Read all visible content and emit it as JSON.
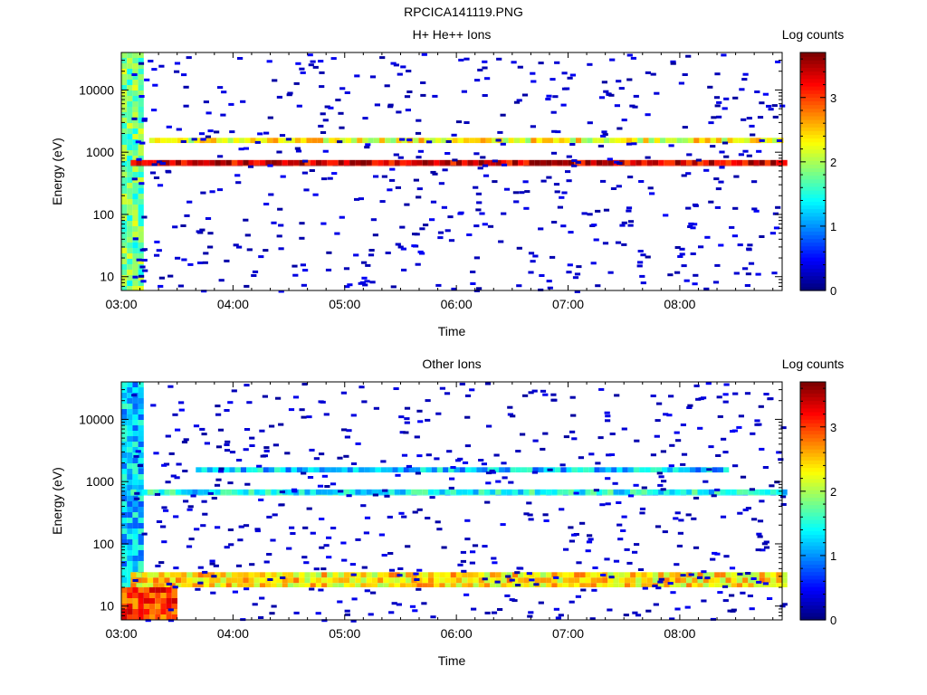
{
  "page_title": "RPCICA141119.PNG",
  "chart_data": [
    {
      "type": "heatmap",
      "title": "H+ He++ Ions",
      "xlabel": "Time",
      "ylabel": "Energy (eV)",
      "x_ticks": [
        "03:00",
        "04:00",
        "05:00",
        "06:00",
        "07:00",
        "08:00"
      ],
      "x_range": [
        "03:00",
        "08:55"
      ],
      "y_scale": "log",
      "y_ticks": [
        10,
        100,
        1000,
        10000
      ],
      "y_range": [
        6,
        40000
      ],
      "colorbar": {
        "label": "Log counts",
        "ticks": [
          0,
          1,
          2,
          3
        ],
        "range": [
          0,
          3.7
        ]
      },
      "features": [
        {
          "time": [
            "03:00",
            "03:10"
          ],
          "energy_ev": [
            6,
            40000
          ],
          "log_counts": 1.8
        },
        {
          "time": [
            "03:05",
            "08:55"
          ],
          "energy_ev": [
            600,
            750
          ],
          "log_counts": 3.4
        },
        {
          "time": [
            "03:15",
            "08:55"
          ],
          "energy_ev": [
            1400,
            1700
          ],
          "log_counts": 2.3
        },
        {
          "time": [
            "03:05",
            "08:55"
          ],
          "energy_ev": [
            6,
            40000
          ],
          "log_counts": 0.1,
          "type": "sparse"
        }
      ]
    },
    {
      "type": "heatmap",
      "title": "Other Ions",
      "xlabel": "Time",
      "ylabel": "Energy (eV)",
      "x_ticks": [
        "03:00",
        "04:00",
        "05:00",
        "06:00",
        "07:00",
        "08:00"
      ],
      "x_range": [
        "03:00",
        "08:55"
      ],
      "y_scale": "log",
      "y_ticks": [
        10,
        100,
        1000,
        10000
      ],
      "y_range": [
        6,
        40000
      ],
      "colorbar": {
        "label": "Log counts",
        "ticks": [
          0,
          1,
          2,
          3
        ],
        "range": [
          0,
          3.7
        ]
      },
      "features": [
        {
          "time": [
            "03:00",
            "03:10"
          ],
          "energy_ev": [
            6,
            40000
          ],
          "log_counts": 1.2
        },
        {
          "time": [
            "03:00",
            "03:30"
          ],
          "energy_ev": [
            6,
            20
          ],
          "log_counts": 3.0
        },
        {
          "time": [
            "03:05",
            "08:55"
          ],
          "energy_ev": [
            600,
            750
          ],
          "log_counts": 1.4
        },
        {
          "time": [
            "03:40",
            "08:25"
          ],
          "energy_ev": [
            1400,
            1700
          ],
          "log_counts": 1.2
        },
        {
          "time": [
            "03:05",
            "08:55"
          ],
          "energy_ev": [
            20,
            35
          ],
          "log_counts": 2.4
        },
        {
          "time": [
            "03:05",
            "08:55"
          ],
          "energy_ev": [
            6,
            40000
          ],
          "log_counts": 0.1,
          "type": "sparse"
        }
      ]
    }
  ]
}
